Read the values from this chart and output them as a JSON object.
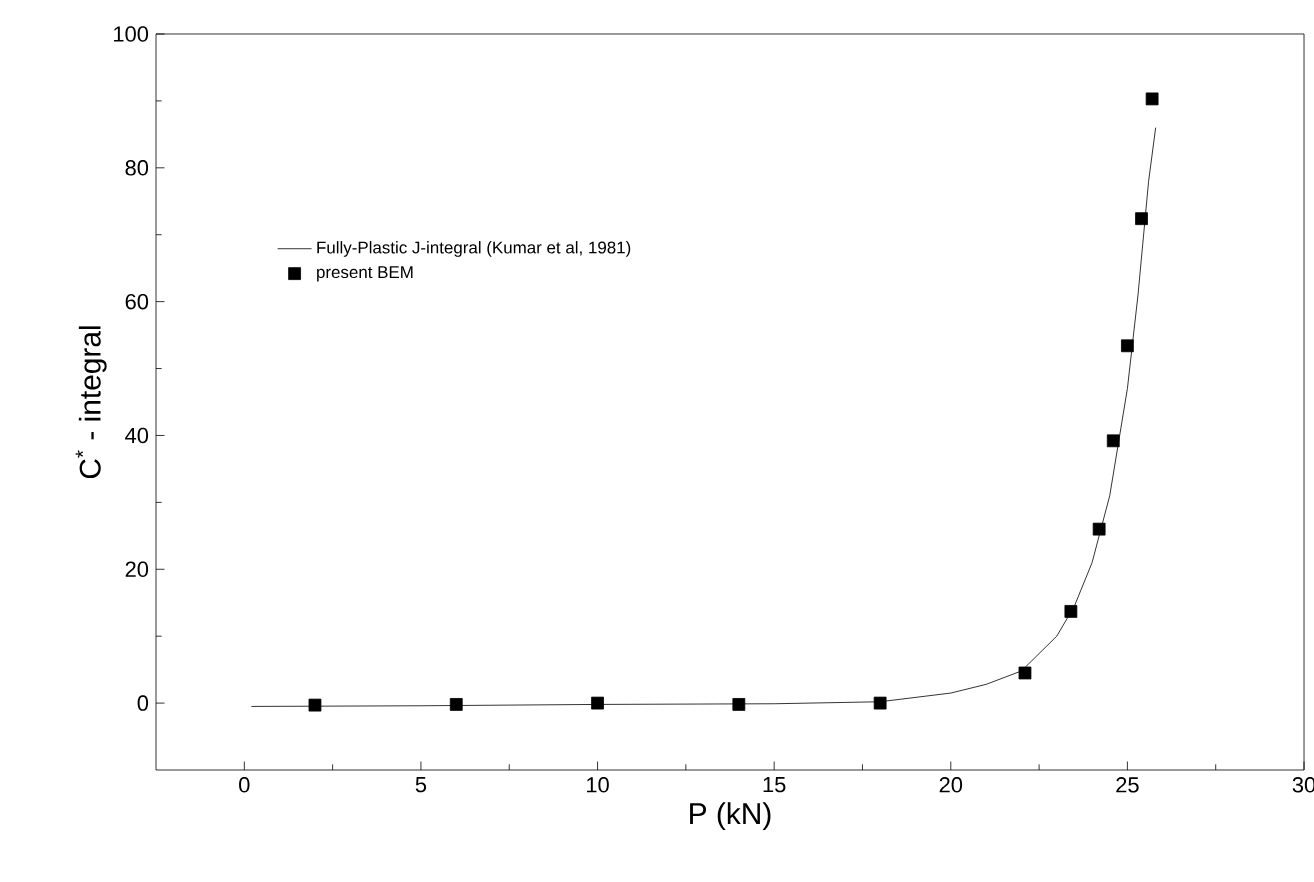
{
  "chart_data": {
    "type": "line",
    "xlabel": "P (kN)",
    "ylabel": "C$^{*}$ - integral",
    "xlim": [
      -2.5,
      30
    ],
    "ylim": [
      -10,
      100
    ],
    "xticks": [
      0,
      5,
      10,
      15,
      20,
      25,
      30
    ],
    "yticks": [
      0,
      20,
      40,
      60,
      80,
      100
    ],
    "grid": false,
    "legend": "top left",
    "series": [
      {
        "name": "Fully-Plastic J-integral (Kumar et al, 1981)",
        "line_style": "solid",
        "color": "#000000",
        "x": [
          0.2,
          5,
          10,
          15,
          18,
          20,
          21,
          22,
          23,
          23.5,
          24,
          24.5,
          25,
          25.3,
          25.6,
          25.8
        ],
        "values": [
          -0.5,
          -0.4,
          -0.2,
          -0.1,
          0.2,
          1.5,
          2.8,
          4.8,
          10,
          14.5,
          21,
          31,
          47,
          61,
          78,
          86
        ]
      },
      {
        "name": "present BEM",
        "type": "scatter",
        "marker": "square",
        "color": "#000000",
        "x": [
          2,
          6,
          10,
          14,
          18,
          22.1,
          23.4,
          24.2,
          24.6,
          25.0,
          25.4,
          25.7
        ],
        "values": [
          -0.3,
          -0.2,
          0,
          -0.2,
          0,
          4.5,
          13.7,
          26,
          39.2,
          53.4,
          72.4,
          90.3
        ]
      }
    ]
  }
}
